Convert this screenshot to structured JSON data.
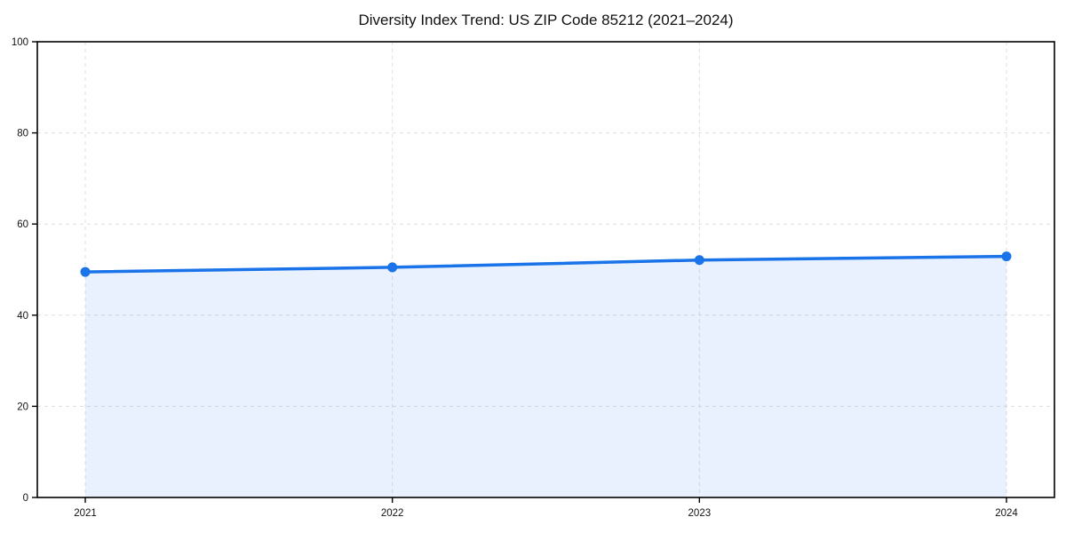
{
  "chart_data": {
    "type": "area",
    "title": "Diversity Index Trend: US ZIP Code 85212 (2021–2024)",
    "x": [
      2021,
      2022,
      2023,
      2024
    ],
    "categories": [
      "2021",
      "2022",
      "2023",
      "2024"
    ],
    "series": [
      {
        "name": "Diversity Index",
        "values": [
          49.5,
          50.5,
          52.1,
          52.9
        ]
      }
    ],
    "xlabel": "",
    "ylabel": "",
    "ylim": [
      0,
      100
    ],
    "yticks": [
      0,
      20,
      40,
      60,
      80,
      100
    ],
    "xticks": [
      "2021",
      "2022",
      "2023",
      "2024"
    ],
    "grid": "dashed-both-axes",
    "legend": "none",
    "marker": "circle",
    "colors": {
      "line": "#1a73e8",
      "marker": "#1a73e8",
      "fill": "rgba(26,115,232,0.10)",
      "grid": "#dedede",
      "axis": "#000000",
      "text": "#111111",
      "background": "#ffffff"
    }
  }
}
